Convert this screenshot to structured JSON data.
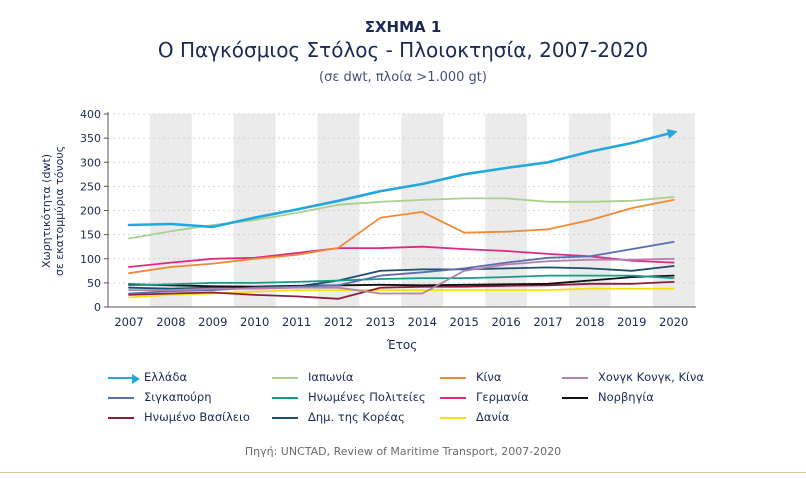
{
  "figure_label": "ΣΧΗΜΑ 1",
  "chart_data": {
    "type": "line",
    "title": "Ο Παγκόσμιος Στόλος - Πλοιοκτησία, 2007-2020",
    "subtitle": "(σε dwt, πλοία >1.000 gt)",
    "xlabel": "Έτος",
    "ylabel_line1": "Χωρητικότητα (dwt)",
    "ylabel_line2": "σε εκατομμύρια τόνους",
    "x": [
      2007,
      2008,
      2009,
      2010,
      2011,
      2012,
      2013,
      2014,
      2015,
      2016,
      2017,
      2018,
      2019,
      2020
    ],
    "yticks": [
      0,
      50,
      100,
      150,
      200,
      250,
      300,
      350,
      400
    ],
    "ylim": [
      0,
      400
    ],
    "grid": "alternating vertical bands",
    "legend_position": "bottom",
    "series": [
      {
        "name": "Ελλάδα",
        "color": "#22a8dc",
        "arrow": true,
        "values": [
          170,
          172,
          166,
          185,
          202,
          220,
          240,
          255,
          275,
          288,
          300,
          322,
          340,
          362
        ]
      },
      {
        "name": "Ιαπωνία",
        "color": "#a9d18e",
        "values": [
          142,
          157,
          170,
          180,
          195,
          212,
          218,
          222,
          225,
          225,
          218,
          218,
          220,
          228
        ]
      },
      {
        "name": "Κίνα",
        "color": "#f08a35",
        "values": [
          70,
          83,
          90,
          100,
          108,
          123,
          185,
          197,
          154,
          156,
          161,
          180,
          205,
          222
        ]
      },
      {
        "name": "Χονγκ Κονγκ, Κίνα",
        "color": "#b581ae",
        "values": [
          35,
          35,
          38,
          38,
          40,
          40,
          28,
          28,
          75,
          88,
          95,
          98,
          98,
          100
        ]
      },
      {
        "name": "Σιγκαπούρη",
        "color": "#5a6fae",
        "values": [
          28,
          33,
          35,
          40,
          42,
          45,
          65,
          72,
          80,
          92,
          102,
          105,
          120,
          135
        ]
      },
      {
        "name": "Ηνωμένες Πολιτείες",
        "color": "#1a9a8a",
        "values": [
          45,
          47,
          50,
          50,
          52,
          55,
          58,
          60,
          60,
          62,
          65,
          65,
          65,
          60
        ]
      },
      {
        "name": "Γερμανία",
        "color": "#de2a86",
        "values": [
          83,
          92,
          100,
          102,
          112,
          122,
          122,
          125,
          120,
          116,
          110,
          105,
          96,
          92
        ]
      },
      {
        "name": "Νορβηγία",
        "color": "#111111",
        "values": [
          47,
          45,
          43,
          42,
          44,
          45,
          46,
          45,
          46,
          47,
          48,
          55,
          62,
          65
        ]
      },
      {
        "name": "Ηνωμένο Βασίλειο",
        "color": "#8c1e3c",
        "values": [
          25,
          28,
          30,
          25,
          22,
          17,
          40,
          42,
          42,
          44,
          45,
          48,
          48,
          52
        ]
      },
      {
        "name": "Δημ. της Κορέας",
        "color": "#1e4f6e",
        "values": [
          40,
          38,
          40,
          40,
          42,
          55,
          75,
          78,
          78,
          80,
          82,
          80,
          75,
          85
        ]
      },
      {
        "name": "Δανία",
        "color": "#f5e014",
        "values": [
          20,
          25,
          28,
          32,
          35,
          35,
          35,
          35,
          35,
          35,
          35,
          38,
          38,
          38
        ]
      }
    ]
  },
  "source": "Πηγή:  UNCTAD, Review of Maritime Transport, 2007-2020"
}
